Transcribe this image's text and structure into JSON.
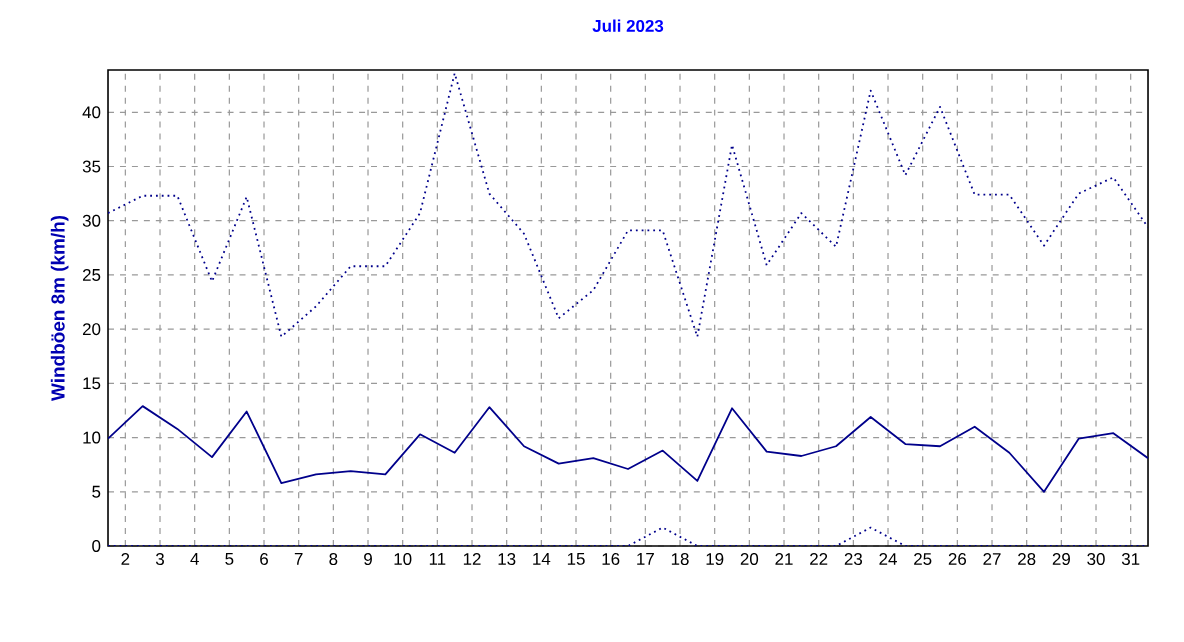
{
  "chart_data": {
    "type": "line",
    "title": "Juli 2023",
    "ylabel": "Windböen 8m (km/h)",
    "x": [
      1.5,
      2.5,
      3.5,
      4.5,
      5.5,
      6.5,
      7.5,
      8.5,
      9.5,
      10.5,
      11.5,
      12.5,
      13.5,
      14.5,
      15.5,
      16.5,
      17.5,
      18.5,
      19.5,
      20.5,
      21.5,
      22.5,
      23.5,
      24.5,
      25.5,
      26.5,
      27.5,
      28.5,
      29.5,
      30.5,
      31.5
    ],
    "series": [
      {
        "color": "#00008b",
        "line_style": "dotted",
        "values": [
          30.7,
          32.3,
          32.3,
          24.4,
          32.2,
          19.3,
          22.1,
          25.8,
          25.8,
          30.7,
          43.6,
          32.5,
          28.8,
          21.0,
          23.6,
          29.1,
          29.1,
          19.3,
          37.0,
          25.9,
          30.7,
          27.6,
          42.0,
          34.2,
          40.5,
          32.4,
          32.4,
          27.7,
          32.5,
          34.0,
          29.4
        ]
      },
      {
        "color": "#00008b",
        "line_style": "solid",
        "values": [
          9.9,
          12.9,
          10.8,
          8.2,
          12.4,
          5.8,
          6.6,
          6.9,
          6.6,
          10.3,
          8.6,
          12.8,
          9.2,
          7.6,
          8.1,
          7.1,
          8.8,
          6.0,
          12.7,
          8.7,
          8.3,
          9.2,
          11.9,
          9.4,
          9.2,
          11.0,
          8.6,
          5.0,
          9.9,
          10.4,
          8.1
        ]
      },
      {
        "color": "#00008b",
        "line_style": "dotted",
        "values": [
          0,
          0,
          0,
          0,
          0,
          0,
          0,
          0,
          0,
          0,
          0,
          0,
          0,
          0,
          0,
          0,
          1.7,
          0,
          0,
          0,
          0,
          0,
          1.7,
          0,
          0,
          0,
          0,
          0,
          0,
          0,
          0
        ]
      }
    ],
    "xlim": [
      1.5,
      31.5
    ],
    "xticks": [
      2,
      3,
      4,
      5,
      6,
      7,
      8,
      9,
      10,
      11,
      12,
      13,
      14,
      15,
      16,
      17,
      18,
      19,
      20,
      21,
      22,
      23,
      24,
      25,
      26,
      27,
      28,
      29,
      30,
      31
    ],
    "ylim": [
      0,
      43.9
    ],
    "yticks": [
      0,
      5,
      10,
      15,
      20,
      25,
      30,
      35,
      40
    ],
    "grid": true,
    "marker": "none"
  }
}
